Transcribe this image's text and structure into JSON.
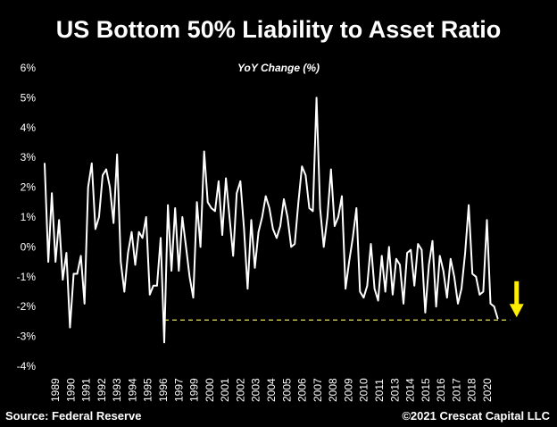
{
  "colors": {
    "background": "#000000",
    "series": "#ffffff",
    "reference_line": "#e8e05a",
    "arrow": "#ffee00"
  },
  "footer": {
    "source": "Source: Federal Reserve",
    "copyright": "©2021 Crescat Capital LLC"
  },
  "chart_data": {
    "type": "line",
    "title": "US Bottom 50% Liability to Asset Ratio",
    "subtitle": "YoY Change (%)",
    "ylim": [
      -4,
      6
    ],
    "yticks": [
      "6%",
      "5%",
      "4%",
      "3%",
      "2%",
      "1%",
      "0%",
      "-1%",
      "-2%",
      "-3%",
      "-4%"
    ],
    "xlim": [
      1989,
      2021.75
    ],
    "xticks": [
      "1989",
      "1990",
      "1991",
      "1992",
      "1993",
      "1994",
      "1995",
      "1996",
      "1997",
      "1999",
      "2000",
      "2001",
      "2002",
      "2003",
      "2004",
      "2005",
      "2006",
      "2007",
      "2008",
      "2009",
      "2010",
      "2011",
      "2013",
      "2014",
      "2015",
      "2016",
      "2017",
      "2018",
      "2020"
    ],
    "grid": false,
    "series": [
      {
        "values": [
          [
            1989.0,
            2.8
          ],
          [
            1989.25,
            -0.5
          ],
          [
            1989.5,
            1.8
          ],
          [
            1989.75,
            -0.5
          ],
          [
            1990.0,
            0.9
          ],
          [
            1990.25,
            -1.1
          ],
          [
            1990.5,
            -0.2
          ],
          [
            1990.75,
            -2.7
          ],
          [
            1991.0,
            -0.9
          ],
          [
            1991.25,
            -0.9
          ],
          [
            1991.5,
            -0.3
          ],
          [
            1991.75,
            -1.9
          ],
          [
            1992.0,
            2.0
          ],
          [
            1992.25,
            2.8
          ],
          [
            1992.5,
            0.6
          ],
          [
            1992.75,
            1.0
          ],
          [
            1993.0,
            2.4
          ],
          [
            1993.25,
            2.6
          ],
          [
            1993.5,
            2.0
          ],
          [
            1993.75,
            0.8
          ],
          [
            1994.0,
            3.1
          ],
          [
            1994.25,
            -0.5
          ],
          [
            1994.5,
            -1.5
          ],
          [
            1994.75,
            -0.2
          ],
          [
            1995.0,
            0.5
          ],
          [
            1995.25,
            -0.6
          ],
          [
            1995.5,
            0.5
          ],
          [
            1995.75,
            0.3
          ],
          [
            1996.0,
            1.0
          ],
          [
            1996.25,
            -1.6
          ],
          [
            1996.5,
            -1.3
          ],
          [
            1996.75,
            -1.3
          ],
          [
            1997.0,
            0.3
          ],
          [
            1997.25,
            -3.2
          ],
          [
            1997.5,
            1.4
          ],
          [
            1997.75,
            -0.8
          ],
          [
            1998.0,
            1.3
          ],
          [
            1998.25,
            -0.8
          ],
          [
            1998.5,
            1.0
          ],
          [
            1998.75,
            0.0
          ],
          [
            1999.0,
            -1.0
          ],
          [
            1999.25,
            -1.7
          ],
          [
            1999.5,
            1.5
          ],
          [
            1999.75,
            0.0
          ],
          [
            2000.0,
            3.2
          ],
          [
            2000.25,
            1.5
          ],
          [
            2000.5,
            1.3
          ],
          [
            2000.75,
            1.2
          ],
          [
            2001.0,
            2.2
          ],
          [
            2001.25,
            0.4
          ],
          [
            2001.5,
            2.3
          ],
          [
            2001.75,
            1.0
          ],
          [
            2002.0,
            -0.3
          ],
          [
            2002.25,
            1.8
          ],
          [
            2002.5,
            2.2
          ],
          [
            2002.75,
            0.6
          ],
          [
            2003.0,
            -1.4
          ],
          [
            2003.25,
            0.9
          ],
          [
            2003.5,
            -0.7
          ],
          [
            2003.75,
            0.5
          ],
          [
            2004.0,
            1.0
          ],
          [
            2004.25,
            1.7
          ],
          [
            2004.5,
            1.3
          ],
          [
            2004.75,
            0.6
          ],
          [
            2005.0,
            0.3
          ],
          [
            2005.25,
            0.7
          ],
          [
            2005.5,
            1.6
          ],
          [
            2005.75,
            1.0
          ],
          [
            2006.0,
            0.0
          ],
          [
            2006.25,
            0.1
          ],
          [
            2006.5,
            1.5
          ],
          [
            2006.75,
            2.7
          ],
          [
            2007.0,
            2.4
          ],
          [
            2007.25,
            1.3
          ],
          [
            2007.5,
            1.2
          ],
          [
            2007.75,
            5.0
          ],
          [
            2008.0,
            1.3
          ],
          [
            2008.25,
            0.0
          ],
          [
            2008.5,
            1.0
          ],
          [
            2008.75,
            2.6
          ],
          [
            2009.0,
            0.7
          ],
          [
            2009.25,
            1.0
          ],
          [
            2009.5,
            1.7
          ],
          [
            2009.75,
            -1.4
          ],
          [
            2010.0,
            -0.5
          ],
          [
            2010.25,
            0.3
          ],
          [
            2010.5,
            1.3
          ],
          [
            2010.75,
            -1.5
          ],
          [
            2011.0,
            -1.7
          ],
          [
            2011.25,
            -1.3
          ],
          [
            2011.5,
            0.1
          ],
          [
            2011.75,
            -1.4
          ],
          [
            2012.0,
            -1.8
          ],
          [
            2012.25,
            -0.3
          ],
          [
            2012.5,
            -1.5
          ],
          [
            2012.75,
            0.0
          ],
          [
            2013.0,
            -1.6
          ],
          [
            2013.25,
            -0.4
          ],
          [
            2013.5,
            -0.6
          ],
          [
            2013.75,
            -1.9
          ],
          [
            2014.0,
            -0.2
          ],
          [
            2014.25,
            -0.1
          ],
          [
            2014.5,
            -1.3
          ],
          [
            2014.75,
            0.1
          ],
          [
            2015.0,
            -0.1
          ],
          [
            2015.25,
            -2.2
          ],
          [
            2015.5,
            -0.6
          ],
          [
            2015.75,
            0.2
          ],
          [
            2016.0,
            -2.0
          ],
          [
            2016.25,
            -0.3
          ],
          [
            2016.5,
            -0.8
          ],
          [
            2016.75,
            -1.7
          ],
          [
            2017.0,
            -0.4
          ],
          [
            2017.25,
            -1.0
          ],
          [
            2017.5,
            -1.9
          ],
          [
            2017.75,
            -1.4
          ],
          [
            2018.0,
            -0.2
          ],
          [
            2018.25,
            1.4
          ],
          [
            2018.5,
            -0.9
          ],
          [
            2018.75,
            -1.0
          ],
          [
            2019.0,
            -1.6
          ],
          [
            2019.25,
            -1.5
          ],
          [
            2019.5,
            0.9
          ],
          [
            2019.75,
            -1.9
          ],
          [
            2020.0,
            -2.0
          ],
          [
            2020.25,
            -2.4
          ]
        ]
      }
    ],
    "reference_line": {
      "y": -2.45,
      "x_from": 1997.25,
      "x_to": 2021.1,
      "style": "dashed"
    },
    "arrow": {
      "x": 2021.55,
      "y_from": -1.15,
      "y_to": -2.3,
      "direction": "down"
    }
  }
}
